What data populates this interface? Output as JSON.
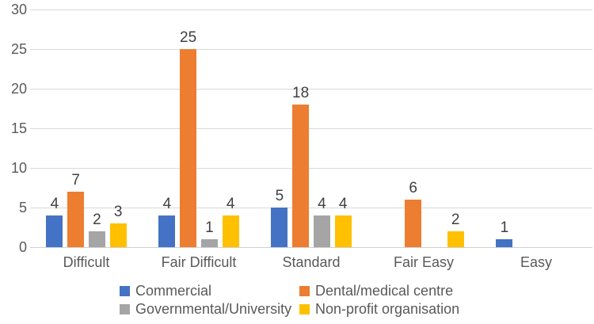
{
  "chart_data": {
    "type": "bar",
    "title": "",
    "xlabel": "",
    "ylabel": "",
    "categories": [
      "Difficult",
      "Fair Difficult",
      "Standard",
      "Fair Easy",
      "Easy"
    ],
    "series": [
      {
        "name": "Commercial",
        "color": "#4472C4",
        "values": [
          4,
          4,
          5,
          0,
          1
        ]
      },
      {
        "name": "Dental/medical centre",
        "color": "#ED7D31",
        "values": [
          7,
          25,
          18,
          6,
          0
        ]
      },
      {
        "name": "Governmental/University",
        "color": "#A5A5A5",
        "values": [
          2,
          1,
          4,
          0,
          0
        ]
      },
      {
        "name": "Non-profit organisation",
        "color": "#FFC000",
        "values": [
          3,
          4,
          4,
          2,
          0
        ]
      }
    ],
    "ylim": [
      0,
      30
    ],
    "yticks": [
      0,
      5,
      10,
      15,
      20,
      25,
      30
    ],
    "grid": true,
    "data_labels": true,
    "hide_zero_values": true,
    "legend_position": "bottom",
    "legend_rows": [
      [
        "Commercial",
        "Dental/medical centre"
      ],
      [
        "Governmental/University",
        "Non-profit organisation"
      ]
    ]
  }
}
